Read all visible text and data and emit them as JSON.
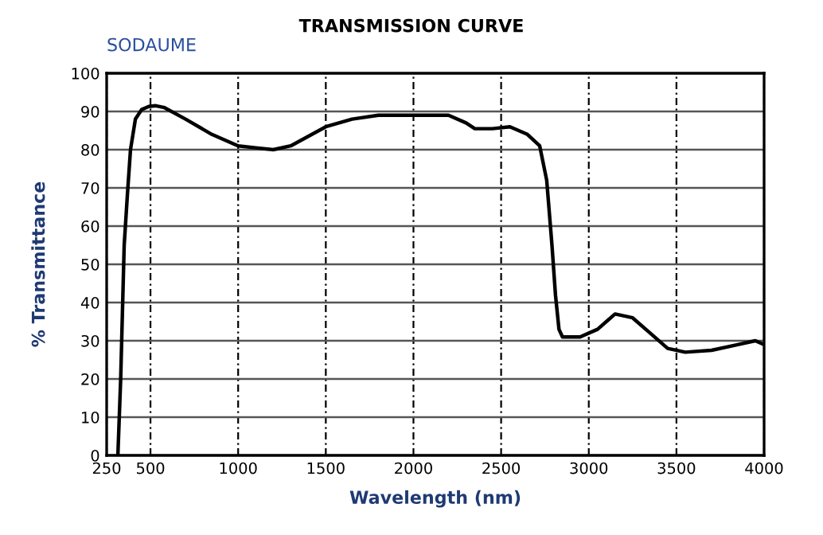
{
  "chart_data": {
    "type": "line",
    "title": "TRANSMISSION CURVE",
    "annotations": [
      "SODAUME"
    ],
    "xlabel": "Wavelength (nm)",
    "ylabel": "% Transmittance",
    "x": [
      314,
      330,
      350,
      368,
      386,
      414,
      450,
      490,
      530,
      580,
      700,
      850,
      1000,
      1100,
      1200,
      1300,
      1400,
      1500,
      1650,
      1800,
      2000,
      2200,
      2300,
      2350,
      2450,
      2550,
      2650,
      2720,
      2760,
      2790,
      2810,
      2830,
      2850,
      2950,
      3050,
      3150,
      3250,
      3350,
      3450,
      3550,
      3700,
      3850,
      3950,
      4000
    ],
    "series": [
      {
        "color": "#000000",
        "values": [
          0,
          20,
          55,
          68,
          80,
          88,
          90.5,
          91.3,
          91.5,
          91,
          88,
          84,
          81,
          80.5,
          80,
          81,
          83.5,
          86,
          88,
          89,
          89,
          89,
          87,
          85.5,
          85.5,
          86,
          84,
          81,
          72,
          55,
          42,
          33,
          31,
          31,
          33,
          37,
          36,
          32,
          28,
          27,
          27.5,
          29,
          30,
          29
        ]
      }
    ],
    "xlim": [
      250,
      4000
    ],
    "ylim": [
      0,
      100
    ],
    "xticks": [
      250,
      500,
      1000,
      1500,
      2000,
      2500,
      3000,
      3500,
      4000
    ],
    "yticks": [
      0,
      10,
      20,
      30,
      40,
      50,
      60,
      70,
      80,
      90,
      100
    ],
    "grid": true,
    "marker": "none",
    "line_style": "solid"
  }
}
